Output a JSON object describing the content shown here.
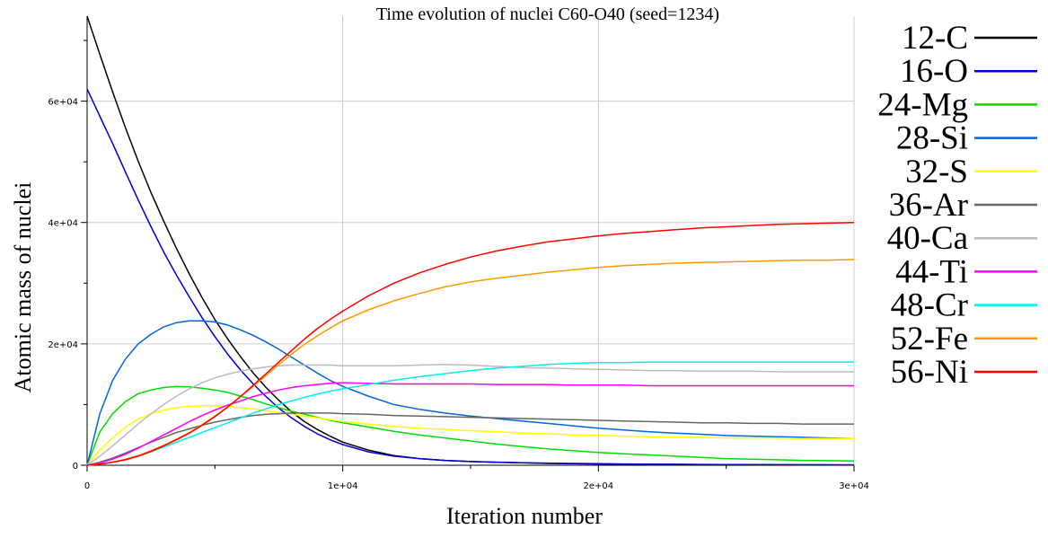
{
  "chart_data": {
    "type": "line",
    "title": "Time evolution of nuclei C60-O40 (seed=1234)",
    "xlabel": "Iteration number",
    "ylabel": "Atomic mass of nuclei",
    "xlim": [
      0,
      30000
    ],
    "ylim": [
      0,
      74000
    ],
    "x_ticks": [
      0,
      10000,
      20000,
      30000
    ],
    "x_tick_labels": [
      "0",
      "1e+04",
      "2e+04",
      "3e+04"
    ],
    "y_ticks": [
      0,
      20000,
      40000,
      60000
    ],
    "y_tick_labels": [
      "0",
      "2e+04",
      "4e+04",
      "6e+04"
    ],
    "grid": true,
    "legend_position": "right",
    "x": [
      0,
      500,
      1000,
      1500,
      2000,
      2500,
      3000,
      3500,
      4000,
      4500,
      5000,
      5500,
      6000,
      6500,
      7000,
      7500,
      8000,
      8500,
      9000,
      9500,
      10000,
      11000,
      12000,
      13000,
      14000,
      15000,
      16000,
      17000,
      18000,
      19000,
      20000,
      21000,
      22000,
      23000,
      24000,
      25000,
      26000,
      27000,
      28000,
      29000,
      30000
    ],
    "series": [
      {
        "name": "12-C",
        "color": "#000000",
        "values": [
          74000,
          67700,
          61500,
          55600,
          50100,
          44900,
          40200,
          35700,
          31500,
          27600,
          24000,
          20800,
          17900,
          15200,
          12800,
          10700,
          8800,
          7200,
          5900,
          4800,
          3800,
          2500,
          1600,
          1100,
          800,
          600,
          500,
          400,
          300,
          250,
          200,
          180,
          160,
          140,
          120,
          100,
          90,
          80,
          70,
          60,
          50
        ]
      },
      {
        "name": "16-O",
        "color": "#0000cc",
        "values": [
          62000,
          57500,
          53000,
          48300,
          43700,
          39300,
          35100,
          31300,
          27700,
          24300,
          21200,
          18300,
          15700,
          13400,
          11300,
          9400,
          7800,
          6400,
          5200,
          4200,
          3400,
          2200,
          1500,
          1100,
          800,
          600,
          500,
          400,
          350,
          300,
          250,
          200,
          180,
          160,
          140,
          120,
          100,
          90,
          80,
          70,
          60
        ]
      },
      {
        "name": "24-Mg",
        "color": "#00dd00",
        "values": [
          0,
          5500,
          8500,
          10500,
          11800,
          12400,
          12800,
          13000,
          12900,
          12700,
          12400,
          12000,
          11400,
          10800,
          10100,
          9500,
          8900,
          8400,
          7900,
          7400,
          7000,
          6300,
          5600,
          5000,
          4500,
          4000,
          3500,
          3100,
          2700,
          2400,
          2100,
          1900,
          1700,
          1500,
          1300,
          1100,
          1000,
          900,
          800,
          750,
          700
        ]
      },
      {
        "name": "28-Si",
        "color": "#0066dd",
        "values": [
          0,
          8500,
          14000,
          17500,
          20000,
          21600,
          22800,
          23500,
          23800,
          23800,
          23600,
          23100,
          22300,
          21400,
          20300,
          19100,
          17800,
          16500,
          15200,
          14000,
          13000,
          11400,
          10000,
          9200,
          8600,
          8100,
          7700,
          7300,
          6900,
          6500,
          6100,
          5800,
          5500,
          5300,
          5100,
          4900,
          4800,
          4700,
          4600,
          4500,
          4400
        ]
      },
      {
        "name": "32-S",
        "color": "#ffff00",
        "values": [
          0,
          2500,
          4500,
          6300,
          7600,
          8500,
          9100,
          9500,
          9700,
          9800,
          9800,
          9700,
          9500,
          9300,
          9000,
          8700,
          8400,
          8100,
          7800,
          7500,
          7200,
          6800,
          6400,
          6100,
          5900,
          5700,
          5500,
          5300,
          5200,
          5000,
          4900,
          4800,
          4700,
          4600,
          4600,
          4500,
          4500,
          4500,
          4400,
          4400,
          4400
        ]
      },
      {
        "name": "36-Ar",
        "color": "#666666",
        "values": [
          0,
          500,
          1200,
          2000,
          2900,
          3800,
          4600,
          5400,
          6000,
          6600,
          7100,
          7500,
          7900,
          8200,
          8400,
          8500,
          8600,
          8600,
          8600,
          8600,
          8500,
          8400,
          8200,
          8100,
          8000,
          7900,
          7800,
          7700,
          7600,
          7500,
          7400,
          7300,
          7200,
          7100,
          7000,
          7000,
          6900,
          6900,
          6800,
          6800,
          6800
        ]
      },
      {
        "name": "40-Ca",
        "color": "#bbbbbb",
        "values": [
          0,
          1500,
          3200,
          5000,
          6800,
          8500,
          10000,
          11400,
          12600,
          13600,
          14400,
          15000,
          15500,
          15900,
          16200,
          16400,
          16500,
          16500,
          16500,
          16500,
          16400,
          16400,
          16400,
          16500,
          16600,
          16500,
          16300,
          16100,
          16000,
          15900,
          15800,
          15700,
          15600,
          15600,
          15500,
          15500,
          15500,
          15400,
          15400,
          15400,
          15400
        ]
      },
      {
        "name": "44-Ti",
        "color": "#ff00ff",
        "values": [
          0,
          400,
          1000,
          1800,
          2800,
          3900,
          5000,
          6100,
          7200,
          8200,
          9100,
          9900,
          10600,
          11300,
          11900,
          12400,
          12800,
          13100,
          13300,
          13500,
          13600,
          13500,
          13400,
          13400,
          13400,
          13400,
          13300,
          13300,
          13300,
          13200,
          13200,
          13200,
          13100,
          13100,
          13100,
          13100,
          13100,
          13100,
          13100,
          13100,
          13100
        ]
      },
      {
        "name": "48-Cr",
        "color": "#00eeee",
        "values": [
          0,
          200,
          500,
          900,
          1500,
          2200,
          3000,
          3800,
          4600,
          5400,
          6200,
          7000,
          7800,
          8600,
          9300,
          10000,
          10600,
          11200,
          11700,
          12200,
          12600,
          13300,
          14000,
          14600,
          15100,
          15600,
          16000,
          16300,
          16600,
          16800,
          16900,
          16900,
          17000,
          17000,
          17000,
          17000,
          17000,
          17000,
          17000,
          17000,
          17000
        ]
      },
      {
        "name": "52-Fe",
        "color": "#ff9900",
        "values": [
          0,
          200,
          500,
          1000,
          1600,
          2400,
          3300,
          4300,
          5400,
          6700,
          8100,
          9600,
          11300,
          13000,
          14800,
          16600,
          18300,
          19900,
          21300,
          22600,
          23800,
          25600,
          27100,
          28300,
          29400,
          30200,
          30800,
          31300,
          31800,
          32200,
          32600,
          32900,
          33100,
          33300,
          33400,
          33500,
          33600,
          33700,
          33800,
          33800,
          33900
        ]
      },
      {
        "name": "56-Ni",
        "color": "#ff0000",
        "values": [
          0,
          200,
          500,
          900,
          1500,
          2300,
          3200,
          4200,
          5300,
          6600,
          8000,
          9600,
          11300,
          13200,
          15100,
          17000,
          18900,
          20800,
          22500,
          24000,
          25400,
          27900,
          30000,
          31700,
          33100,
          34300,
          35300,
          36100,
          36800,
          37300,
          37800,
          38200,
          38500,
          38800,
          39100,
          39300,
          39500,
          39700,
          39800,
          39900,
          40000
        ]
      }
    ]
  }
}
